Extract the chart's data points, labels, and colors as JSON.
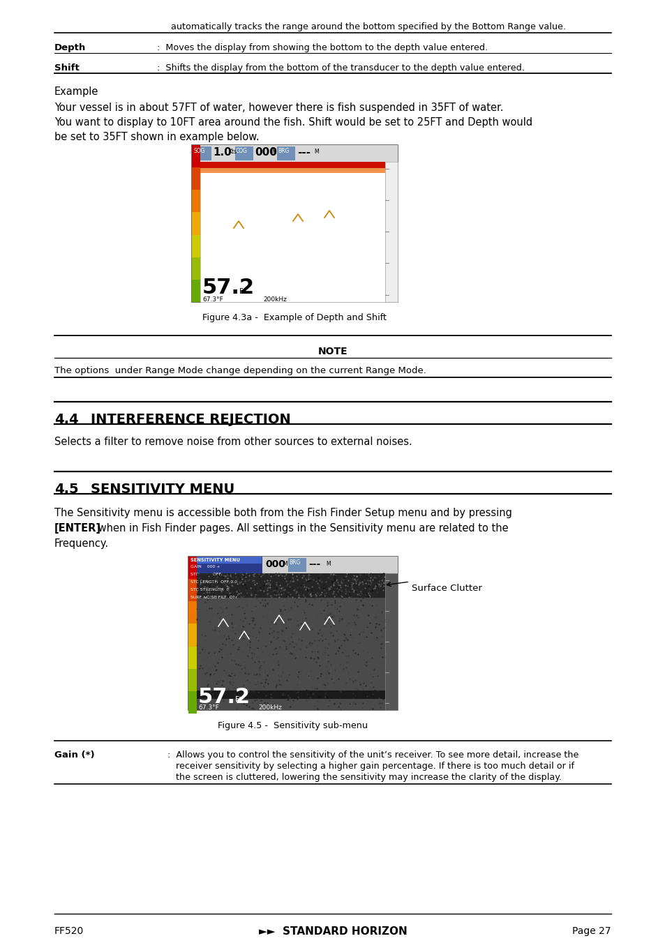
{
  "bg_color": "#ffffff",
  "top_text": "automatically tracks the range around the bottom specified by the Bottom Range value.",
  "depth_label": "Depth",
  "depth_text": "Moves the display from showing the bottom to the depth value entered.",
  "shift_label": "Shift",
  "shift_text": "Shifts the display from the bottom of the transducer to the depth value entered.",
  "example_heading": "Example",
  "example_line1": "Your vessel is in about 57FT of water, however there is fish suspended in 35FT of water.",
  "example_line2": "You want to display to 10FT area around the fish. Shift would be set to 25FT and Depth would",
  "example_line3": "be set to 35FT shown in example below.",
  "fig43a_caption": "Figure 4.3a -  Example of Depth and Shift",
  "note_heading": "NOTE",
  "note_body": "The options  under Range Mode change depending on the current Range Mode.",
  "section44_num": "4.4",
  "section44_title": "INTERFERENCE REJECTION",
  "section44_body": "Selects a filter to remove noise from other sources to external noises.",
  "section45_num": "4.5",
  "section45_title": "SENSITIVITY MENU",
  "section45_line1": "The Sensitivity menu is accessible both from the Fish Finder Setup menu and by pressing",
  "section45_line2a": "[ENTER]",
  "section45_line2b": " when in Fish Finder pages. All settings in the Sensitivity menu are related to the",
  "section45_line3": "Frequency.",
  "fig45_caption": "Figure 4.5 -  Sensitivity sub-menu",
  "surface_clutter_label": "Surface Clutter",
  "gain_label": "Gain (*)",
  "gain_line1": "Allows you to control the sensitivity of the unit’s receiver. To see more detail, increase the",
  "gain_line2": "receiver sensitivity by selecting a higher gain percentage. If there is too much detail or if",
  "gain_line3": "the screen is cluttered, lowering the sensitivity may increase the clarity of the display.",
  "footer_left": "FF520",
  "footer_center": "►►  STANDARD HORIZON",
  "footer_right": "Page 27",
  "cbar_colors": [
    "#cc0000",
    "#dd4400",
    "#ee7700",
    "#eeaa00",
    "#cccc00",
    "#99bb00",
    "#66aa00"
  ]
}
